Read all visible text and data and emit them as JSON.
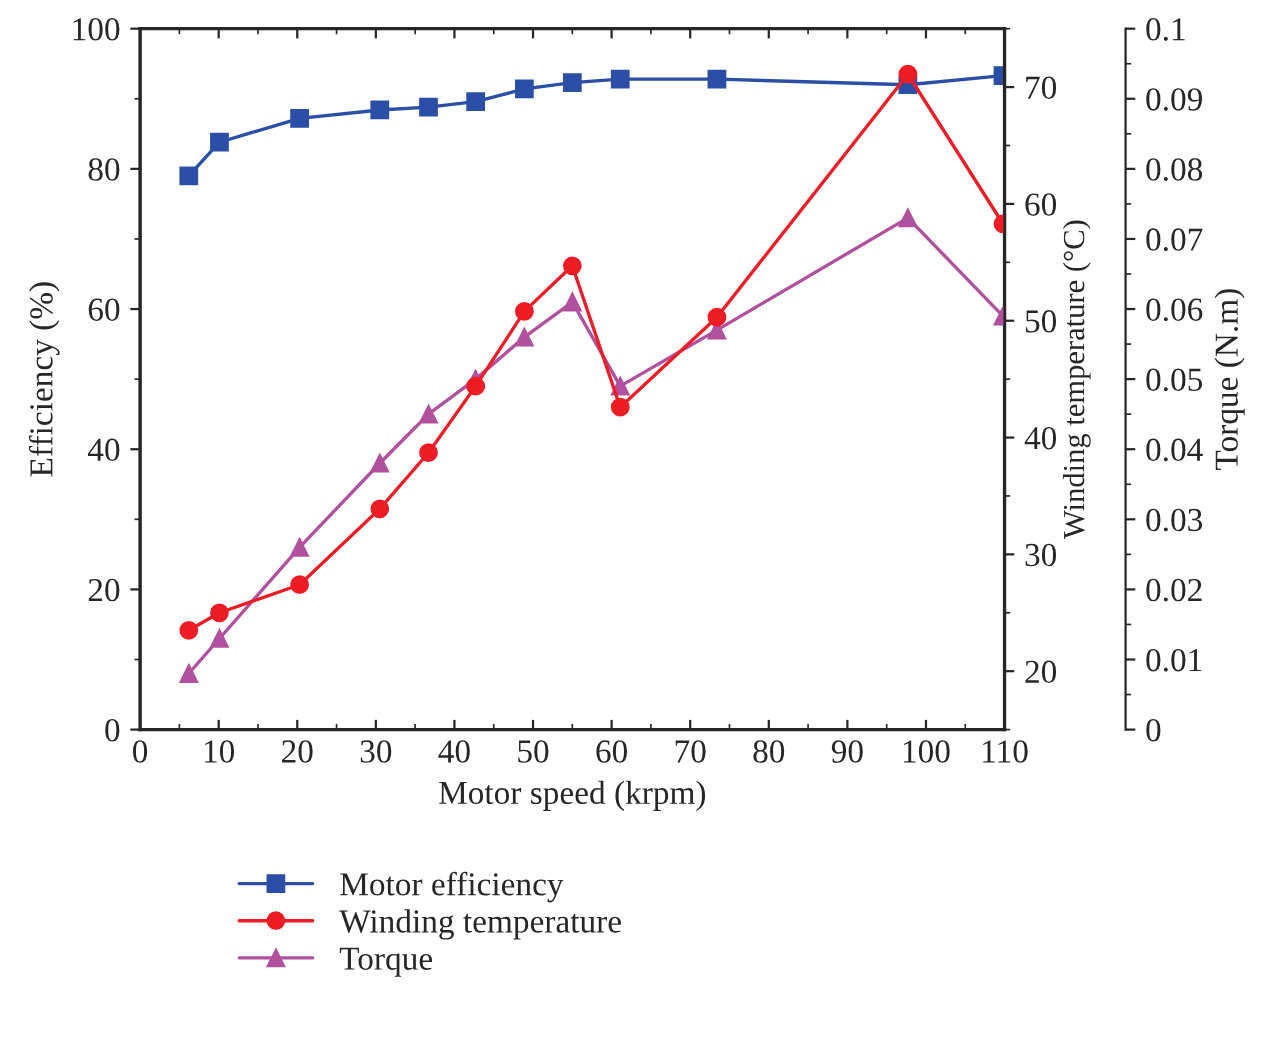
{
  "chart_data": {
    "type": "line",
    "xlabel": "Motor speed (krpm)",
    "ylabel": "Efficiency (%)",
    "y2label": "Winding temperature (°C)",
    "y3label": "Torque (N.m)",
    "xlim": [
      0,
      110
    ],
    "xticks": [
      0,
      10,
      20,
      30,
      40,
      50,
      60,
      70,
      80,
      90,
      100,
      110
    ],
    "ylim": [
      0,
      100
    ],
    "yticks": [
      0,
      20,
      40,
      60,
      80,
      100
    ],
    "y2lim": [
      15,
      75
    ],
    "y2ticks": [
      20,
      30,
      40,
      50,
      60,
      70
    ],
    "y3lim": [
      0,
      0.1
    ],
    "y3ticks": [
      0,
      0.01,
      0.02,
      0.03,
      0.04,
      0.05,
      0.06,
      0.07,
      0.08,
      0.09,
      0.1
    ],
    "x": [
      6.2,
      10.1,
      20.3,
      30.5,
      36.7,
      42.7,
      48.9,
      55,
      61.1,
      73.4,
      97.7,
      109.8
    ],
    "series": [
      {
        "name": "Motor efficiency",
        "color": "#2b4fa6",
        "marker": "square",
        "values": [
          79.0,
          83.8,
          87.2,
          88.4,
          88.8,
          89.6,
          91.4,
          92.3,
          92.8,
          92.8,
          92.0,
          93.3
        ]
      },
      {
        "name": "Winding temperature",
        "color": "#ee1c25",
        "marker": "circle",
        "axis": "y2",
        "values": [
          23.5,
          25.0,
          27.4,
          33.9,
          38.7,
          44.4,
          50.8,
          54.7,
          42.6,
          50.3,
          71.1,
          58.3
        ]
      },
      {
        "name": "Torque",
        "color": "#b0509e",
        "marker": "triangle",
        "axis": "y3",
        "values": [
          0.008,
          0.013,
          0.026,
          0.038,
          0.045,
          0.05,
          0.056,
          0.061,
          0.049,
          0.057,
          0.073,
          0.059
        ]
      }
    ],
    "legend": "bottom",
    "grid": false,
    "line_style": "solid"
  }
}
